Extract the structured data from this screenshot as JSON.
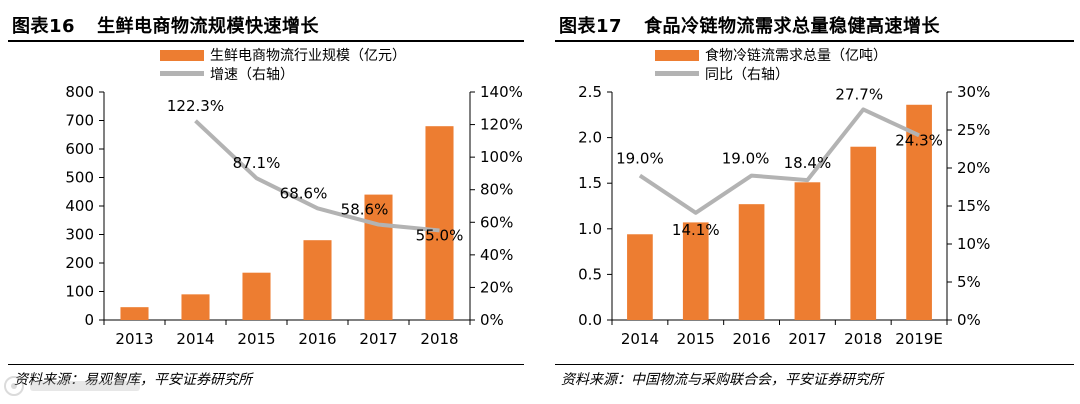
{
  "left": {
    "fig_no": "图表16",
    "title": "生鲜电商物流规模快速增长",
    "source": "资料来源：易观智库，平安证券研究所"
  },
  "right": {
    "fig_no": "图表17",
    "title": "食品冷链物流需求总量稳健高速增长",
    "source": "资料来源：中国物流与采购联合会，平安证券研究所"
  },
  "chart_data": [
    {
      "type": "bar",
      "categories": [
        "2013",
        "2014",
        "2015",
        "2016",
        "2017",
        "2018"
      ],
      "series": [
        {
          "name": "生鲜电商物流行业规模（亿元）",
          "type": "bar",
          "axis": "left",
          "color": "#ED7D31",
          "values": [
            45,
            90,
            166,
            280,
            440,
            680
          ]
        },
        {
          "name": "增速（右轴）",
          "type": "line",
          "axis": "right",
          "color": "#B3B3B3",
          "values": [
            null,
            122.3,
            87.1,
            68.6,
            58.6,
            55.0
          ],
          "labels": [
            null,
            "122.3%",
            "87.1%",
            "68.6%",
            "58.6%",
            "55.0%"
          ]
        }
      ],
      "ylim": [
        0,
        800
      ],
      "yticks": [
        "0",
        "100",
        "200",
        "300",
        "400",
        "500",
        "600",
        "700",
        "800"
      ],
      "y2lim": [
        0,
        140
      ],
      "y2ticks": [
        "0%",
        "20%",
        "40%",
        "60%",
        "80%",
        "100%",
        "120%",
        "140%"
      ],
      "legend": "top-center",
      "grid": false
    },
    {
      "type": "bar",
      "categories": [
        "2014",
        "2015",
        "2016",
        "2017",
        "2018",
        "2019E"
      ],
      "series": [
        {
          "name": "食物冷链流需求总量（亿吨）",
          "type": "bar",
          "axis": "left",
          "color": "#ED7D31",
          "values": [
            0.94,
            1.07,
            1.27,
            1.51,
            1.9,
            2.36
          ]
        },
        {
          "name": "同比（右轴）",
          "type": "line",
          "axis": "right",
          "color": "#B3B3B3",
          "values": [
            19.0,
            14.1,
            19.0,
            18.4,
            27.7,
            24.3
          ],
          "labels": [
            "19.0%",
            "14.1%",
            "19.0%",
            "18.4%",
            "27.7%",
            "24.3%"
          ]
        }
      ],
      "ylim": [
        0,
        2.5
      ],
      "yticks": [
        "0.0",
        "0.5",
        "1.0",
        "1.5",
        "2.0",
        "2.5"
      ],
      "y2lim": [
        0,
        30
      ],
      "y2ticks": [
        "0%",
        "5%",
        "10%",
        "15%",
        "20%",
        "25%",
        "30%"
      ],
      "legend": "top-center",
      "grid": false
    }
  ]
}
